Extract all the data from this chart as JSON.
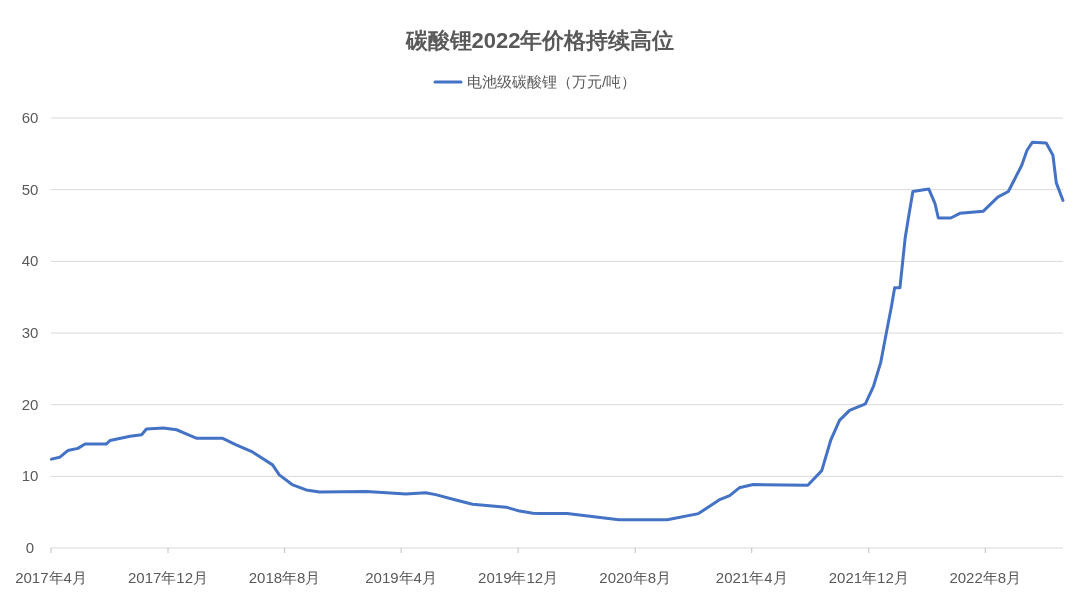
{
  "chart_data": {
    "type": "line",
    "title": "碳酸锂2022年价格持续高位",
    "legend": "top",
    "grid": "y",
    "line_style": "solid",
    "marker": "none",
    "xlim": [
      "2017-04-01",
      "2023-01-10"
    ],
    "ylim": [
      0,
      60
    ],
    "yticks": [
      0,
      10,
      20,
      30,
      40,
      50,
      60
    ],
    "xticks": [
      {
        "value": "2017-04-01",
        "label": "2017年4月"
      },
      {
        "value": "2017-12-01",
        "label": "2017年12月"
      },
      {
        "value": "2018-08-01",
        "label": "2018年8月"
      },
      {
        "value": "2019-04-01",
        "label": "2019年4月"
      },
      {
        "value": "2019-12-01",
        "label": "2019年12月"
      },
      {
        "value": "2020-08-01",
        "label": "2020年8月"
      },
      {
        "value": "2021-04-01",
        "label": "2021年4月"
      },
      {
        "value": "2021-12-01",
        "label": "2021年12月"
      },
      {
        "value": "2022-08-01",
        "label": "2022年8月"
      }
    ],
    "series": [
      {
        "name": "电池级碳酸锂（万元/吨）",
        "color": "#4472c4",
        "x": [
          "2017-04-02",
          "2017-04-19",
          "2017-05-06",
          "2017-05-27",
          "2017-06-11",
          "2017-07-25",
          "2017-08-02",
          "2017-09-13",
          "2017-10-07",
          "2017-10-17",
          "2017-11-21",
          "2017-12-19",
          "2018-01-09",
          "2018-01-30",
          "2018-03-25",
          "2018-04-22",
          "2018-05-26",
          "2018-07-07",
          "2018-07-21",
          "2018-08-18",
          "2018-09-15",
          "2018-10-13",
          "2019-01-19",
          "2019-04-11",
          "2019-05-22",
          "2019-06-12",
          "2019-07-24",
          "2019-08-28",
          "2019-11-06",
          "2019-12-04",
          "2020-01-01",
          "2020-01-15",
          "2020-03-12",
          "2020-06-28",
          "2020-10-07",
          "2020-12-11",
          "2021-01-23",
          "2021-02-14",
          "2021-03-06",
          "2021-04-04",
          "2021-07-27",
          "2021-08-25",
          "2021-09-13",
          "2021-10-01",
          "2021-10-22",
          "2021-11-24",
          "2021-12-11",
          "2021-12-26",
          "2022-01-06",
          "2022-01-17",
          "2022-01-24",
          "2022-02-04",
          "2022-02-15",
          "2022-02-22",
          "2022-03-03",
          "2022-04-05",
          "2022-04-18",
          "2022-04-25",
          "2022-05-21",
          "2022-06-09",
          "2022-07-28",
          "2022-08-27",
          "2022-09-18",
          "2022-10-16",
          "2022-10-27",
          "2022-11-07",
          "2022-12-06",
          "2022-12-20",
          "2022-12-27",
          "2023-01-10"
        ],
        "values": [
          12.4,
          12.65,
          13.6,
          13.9,
          14.5,
          14.5,
          15.0,
          15.6,
          15.8,
          16.6,
          16.75,
          16.5,
          15.9,
          15.3,
          15.3,
          14.4,
          13.4,
          11.6,
          10.2,
          8.8,
          8.1,
          7.8,
          7.9,
          7.55,
          7.7,
          7.45,
          6.7,
          6.1,
          5.7,
          5.15,
          4.85,
          4.8,
          4.8,
          3.95,
          3.95,
          4.8,
          6.7,
          7.3,
          8.4,
          8.85,
          8.75,
          10.8,
          15.1,
          17.8,
          19.2,
          20.1,
          22.6,
          25.9,
          29.8,
          33.6,
          36.3,
          36.3,
          43.3,
          46.2,
          49.75,
          50.1,
          48.1,
          46.05,
          46.05,
          46.7,
          47.0,
          48.95,
          49.75,
          53.4,
          55.5,
          56.6,
          56.5,
          54.8,
          50.95,
          48.5
        ]
      }
    ]
  }
}
